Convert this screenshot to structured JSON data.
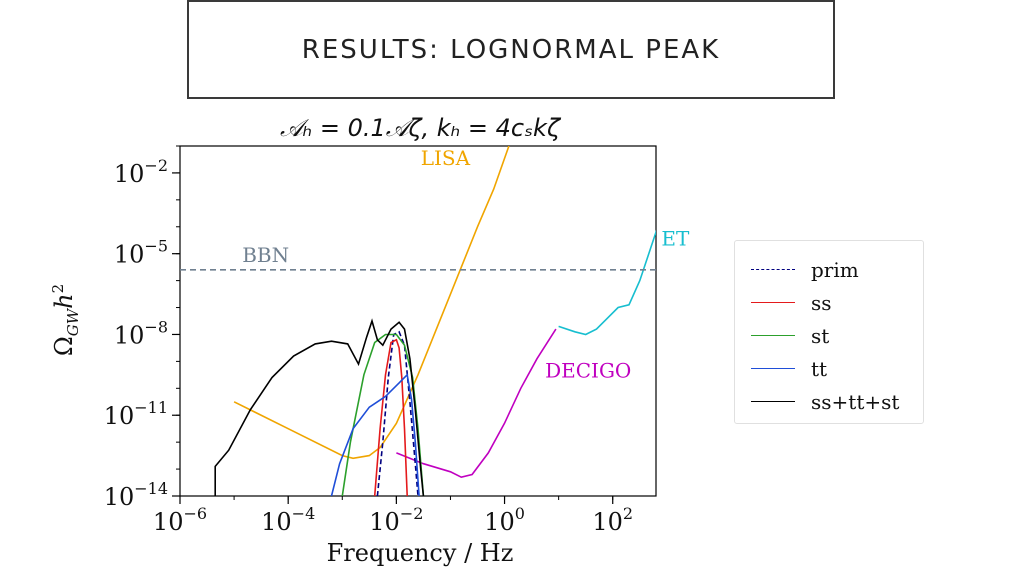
{
  "slide": {
    "title": "RESULTS: LOGNORMAL PEAK"
  },
  "chart_data": {
    "type": "line",
    "subtitle": "𝒜ₕ = 0.1𝒜ζ, kₕ = 4cₛkζ",
    "xlabel": "Frequency / Hz",
    "ylabel": "Ω_GW h²",
    "x_scale": "log",
    "y_scale": "log",
    "xlim_log10": [
      -6,
      2.8
    ],
    "ylim_log10": [
      -14,
      -1
    ],
    "x_ticks": [
      {
        "exp": -6,
        "base": "10",
        "sup": "−6"
      },
      {
        "exp": -4,
        "base": "10",
        "sup": "−4"
      },
      {
        "exp": -2,
        "base": "10",
        "sup": "−2"
      },
      {
        "exp": 0,
        "base": "10",
        "sup": "0"
      },
      {
        "exp": 2,
        "base": "10",
        "sup": "2"
      }
    ],
    "y_ticks": [
      {
        "exp": -14,
        "base": "10",
        "sup": "−14"
      },
      {
        "exp": -11,
        "base": "10",
        "sup": "−11"
      },
      {
        "exp": -8,
        "base": "10",
        "sup": "−8"
      },
      {
        "exp": -5,
        "base": "10",
        "sup": "−5"
      },
      {
        "exp": -2,
        "base": "10",
        "sup": "−2"
      }
    ],
    "annotations": [
      {
        "text": "LISA",
        "at_log10": [
          -1.55,
          -1.7
        ],
        "color": "#f0a500"
      },
      {
        "text": "ET",
        "at_log10": [
          2.9,
          -4.7
        ],
        "color": "#17becf"
      },
      {
        "text": "BBN",
        "at_log10": [
          -4.85,
          -5.3
        ],
        "color": "#708090"
      },
      {
        "text": "DECIGO",
        "at_log10": [
          0.75,
          -9.6
        ],
        "color": "#c000c0"
      }
    ],
    "series": [
      {
        "name": "prim",
        "color": "#000080",
        "dash": "5,3",
        "points": [
          [
            -2.35,
            -14.0
          ],
          [
            -2.25,
            -12.0
          ],
          [
            -2.15,
            -9.6
          ],
          [
            -2.05,
            -8.0
          ],
          [
            -1.95,
            -7.9
          ],
          [
            -1.85,
            -8.4
          ],
          [
            -1.75,
            -10.5
          ],
          [
            -1.65,
            -12.8
          ],
          [
            -1.6,
            -14.0
          ]
        ]
      },
      {
        "name": "ss",
        "color": "#e41a1c",
        "dash": "",
        "points": [
          [
            -2.4,
            -14.0
          ],
          [
            -2.3,
            -11.5
          ],
          [
            -2.2,
            -9.5
          ],
          [
            -2.1,
            -8.3
          ],
          [
            -2.0,
            -8.2
          ],
          [
            -1.95,
            -8.5
          ],
          [
            -1.9,
            -9.6
          ],
          [
            -1.85,
            -11.5
          ],
          [
            -1.8,
            -14.0
          ]
        ]
      },
      {
        "name": "st",
        "color": "#2ca02c",
        "dash": "",
        "points": [
          [
            -3.0,
            -14.0
          ],
          [
            -2.85,
            -12.0
          ],
          [
            -2.6,
            -9.5
          ],
          [
            -2.4,
            -8.3
          ],
          [
            -2.2,
            -8.0
          ],
          [
            -2.0,
            -8.0
          ],
          [
            -1.85,
            -8.4
          ],
          [
            -1.7,
            -9.6
          ],
          [
            -1.6,
            -11.5
          ],
          [
            -1.5,
            -14.0
          ]
        ]
      },
      {
        "name": "tt",
        "color": "#1f4ed8",
        "dash": "",
        "points": [
          [
            -3.2,
            -14.0
          ],
          [
            -3.05,
            -12.8
          ],
          [
            -2.8,
            -11.5
          ],
          [
            -2.5,
            -10.7
          ],
          [
            -2.2,
            -10.3
          ],
          [
            -1.95,
            -9.8
          ],
          [
            -1.8,
            -9.5
          ],
          [
            -1.72,
            -10.4
          ],
          [
            -1.65,
            -12.0
          ],
          [
            -1.58,
            -14.0
          ]
        ]
      },
      {
        "name": "ss+tt+st",
        "color": "#000000",
        "dash": "",
        "points": [
          [
            -5.35,
            -14.0
          ],
          [
            -5.35,
            -12.9
          ],
          [
            -5.1,
            -12.3
          ],
          [
            -4.7,
            -10.8
          ],
          [
            -4.3,
            -9.6
          ],
          [
            -3.9,
            -8.8
          ],
          [
            -3.5,
            -8.35
          ],
          [
            -3.2,
            -8.25
          ],
          [
            -2.9,
            -8.35
          ],
          [
            -2.7,
            -9.1
          ],
          [
            -2.55,
            -8.1
          ],
          [
            -2.45,
            -7.5
          ],
          [
            -2.35,
            -8.2
          ],
          [
            -2.25,
            -8.4
          ],
          [
            -2.1,
            -7.8
          ],
          [
            -1.95,
            -7.55
          ],
          [
            -1.85,
            -7.8
          ],
          [
            -1.75,
            -8.9
          ],
          [
            -1.65,
            -10.8
          ],
          [
            -1.55,
            -13.0
          ],
          [
            -1.5,
            -14.0
          ]
        ]
      }
    ],
    "sensitivity_curves": [
      {
        "name": "LISA",
        "color": "#f0a500",
        "points": [
          [
            -5.0,
            -10.5
          ],
          [
            -4.0,
            -11.5
          ],
          [
            -3.0,
            -12.5
          ],
          [
            -2.8,
            -12.6
          ],
          [
            -2.5,
            -12.5
          ],
          [
            -2.3,
            -12.2
          ],
          [
            -2.0,
            -11.3
          ],
          [
            -1.6,
            -9.5
          ],
          [
            -1.0,
            -6.5
          ],
          [
            -0.5,
            -4.0
          ],
          [
            -0.2,
            -2.6
          ],
          [
            0.08,
            -1.0
          ]
        ]
      },
      {
        "name": "ET",
        "color": "#17becf",
        "points": [
          [
            1.0,
            -7.7
          ],
          [
            1.3,
            -7.9
          ],
          [
            1.5,
            -8.0
          ],
          [
            1.7,
            -7.8
          ],
          [
            1.9,
            -7.4
          ],
          [
            2.1,
            -7.0
          ],
          [
            2.3,
            -6.9
          ],
          [
            2.5,
            -6.0
          ],
          [
            2.7,
            -4.8
          ],
          [
            2.9,
            -3.6
          ],
          [
            3.0,
            -2.9
          ]
        ]
      },
      {
        "name": "DECIGO",
        "color": "#c000c0",
        "points": [
          [
            -2.0,
            -12.4
          ],
          [
            -1.5,
            -12.8
          ],
          [
            -1.0,
            -13.1
          ],
          [
            -0.8,
            -13.3
          ],
          [
            -0.6,
            -13.2
          ],
          [
            -0.3,
            -12.4
          ],
          [
            0.0,
            -11.3
          ],
          [
            0.3,
            -10.0
          ],
          [
            0.6,
            -8.9
          ],
          [
            0.95,
            -7.8
          ]
        ]
      },
      {
        "name": "BBN",
        "color": "#708090",
        "dash": "6,4",
        "points": [
          [
            -6.0,
            -5.6
          ],
          [
            2.8,
            -5.6
          ]
        ]
      }
    ],
    "legend": {
      "placement": "right",
      "entries": [
        "prim",
        "ss",
        "st",
        "tt",
        "ss+tt+st"
      ]
    }
  }
}
